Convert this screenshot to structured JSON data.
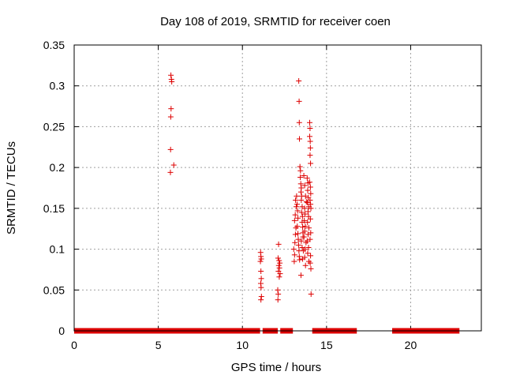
{
  "chart_data": {
    "type": "scatter",
    "title": "Day 108 of 2019, SRMTID for receiver coen",
    "xlabel": "GPS time / hours",
    "ylabel": "SRMTID / TECUs",
    "xlim": [
      0,
      24.2
    ],
    "ylim": [
      0,
      0.35
    ],
    "xticks": [
      0,
      5,
      10,
      15,
      20
    ],
    "xtick_labels": [
      "0",
      "5",
      "10",
      "15",
      "20"
    ],
    "yticks": [
      0,
      0.05,
      0.1,
      0.15,
      0.2,
      0.25,
      0.3,
      0.35
    ],
    "ytick_labels": [
      "0",
      "0.05",
      "0.1",
      "0.15",
      "0.2",
      "0.25",
      "0.3",
      "0.35"
    ],
    "grid": true,
    "series_color": "#dd0000",
    "marker": "plus",
    "zero_ranges": [
      [
        0,
        11.05
      ],
      [
        11.2,
        12.1
      ],
      [
        12.25,
        13.0
      ],
      [
        14.15,
        16.8
      ],
      [
        18.9,
        22.9
      ]
    ],
    "points": [
      [
        5.75,
        0.313
      ],
      [
        5.78,
        0.308
      ],
      [
        5.8,
        0.305
      ],
      [
        5.76,
        0.272
      ],
      [
        5.74,
        0.262
      ],
      [
        5.73,
        0.222
      ],
      [
        5.92,
        0.203
      ],
      [
        5.72,
        0.194
      ],
      [
        11.08,
        0.096
      ],
      [
        11.1,
        0.091
      ],
      [
        11.12,
        0.088
      ],
      [
        11.07,
        0.085
      ],
      [
        11.1,
        0.073
      ],
      [
        11.12,
        0.064
      ],
      [
        11.09,
        0.058
      ],
      [
        11.11,
        0.053
      ],
      [
        11.13,
        0.042
      ],
      [
        11.1,
        0.038
      ],
      [
        12.15,
        0.106
      ],
      [
        12.12,
        0.089
      ],
      [
        12.18,
        0.086
      ],
      [
        12.22,
        0.083
      ],
      [
        12.16,
        0.08
      ],
      [
        12.2,
        0.077
      ],
      [
        12.14,
        0.073
      ],
      [
        12.24,
        0.07
      ],
      [
        12.19,
        0.066
      ],
      [
        12.1,
        0.05
      ],
      [
        12.13,
        0.045
      ],
      [
        12.11,
        0.038
      ],
      [
        13.05,
        0.1
      ],
      [
        13.1,
        0.093
      ],
      [
        13.08,
        0.085
      ],
      [
        13.12,
        0.108
      ],
      [
        13.15,
        0.118
      ],
      [
        13.18,
        0.126
      ],
      [
        13.1,
        0.135
      ],
      [
        13.14,
        0.142
      ],
      [
        13.2,
        0.152
      ],
      [
        13.16,
        0.16
      ],
      [
        13.22,
        0.165
      ],
      [
        13.25,
        0.155
      ],
      [
        13.28,
        0.147
      ],
      [
        13.3,
        0.138
      ],
      [
        13.26,
        0.128
      ],
      [
        13.3,
        0.119
      ],
      [
        13.32,
        0.112
      ],
      [
        13.34,
        0.105
      ],
      [
        13.36,
        0.098
      ],
      [
        13.38,
        0.091
      ],
      [
        13.4,
        0.087
      ],
      [
        13.35,
        0.306
      ],
      [
        13.37,
        0.281
      ],
      [
        13.38,
        0.255
      ],
      [
        13.39,
        0.235
      ],
      [
        13.42,
        0.201
      ],
      [
        13.45,
        0.196
      ],
      [
        13.44,
        0.188
      ],
      [
        13.47,
        0.18
      ],
      [
        13.5,
        0.175
      ],
      [
        13.48,
        0.17
      ],
      [
        13.52,
        0.165
      ],
      [
        13.5,
        0.16
      ],
      [
        13.55,
        0.152
      ],
      [
        13.52,
        0.145
      ],
      [
        13.57,
        0.14
      ],
      [
        13.55,
        0.133
      ],
      [
        13.58,
        0.127
      ],
      [
        13.6,
        0.12
      ],
      [
        13.6,
        0.115
      ],
      [
        13.5,
        0.11
      ],
      [
        13.55,
        0.102
      ],
      [
        13.62,
        0.098
      ],
      [
        13.58,
        0.088
      ],
      [
        13.48,
        0.068
      ],
      [
        13.65,
        0.19
      ],
      [
        13.7,
        0.178
      ],
      [
        13.75,
        0.165
      ],
      [
        13.8,
        0.158
      ],
      [
        13.7,
        0.15
      ],
      [
        13.72,
        0.143
      ],
      [
        13.68,
        0.135
      ],
      [
        13.74,
        0.128
      ],
      [
        13.7,
        0.122
      ],
      [
        13.66,
        0.115
      ],
      [
        13.78,
        0.108
      ],
      [
        13.72,
        0.1
      ],
      [
        13.7,
        0.09
      ],
      [
        13.75,
        0.08
      ],
      [
        13.85,
        0.187
      ],
      [
        13.9,
        0.181
      ],
      [
        13.88,
        0.172
      ],
      [
        13.92,
        0.163
      ],
      [
        13.86,
        0.157
      ],
      [
        13.95,
        0.152
      ],
      [
        13.9,
        0.146
      ],
      [
        13.93,
        0.14
      ],
      [
        13.87,
        0.133
      ],
      [
        13.95,
        0.126
      ],
      [
        13.9,
        0.118
      ],
      [
        13.85,
        0.11
      ],
      [
        13.93,
        0.102
      ],
      [
        13.88,
        0.095
      ],
      [
        13.95,
        0.085
      ],
      [
        14.0,
        0.255
      ],
      [
        14.02,
        0.248
      ],
      [
        14.0,
        0.238
      ],
      [
        14.03,
        0.232
      ],
      [
        14.04,
        0.224
      ],
      [
        14.02,
        0.215
      ],
      [
        14.05,
        0.205
      ],
      [
        14.0,
        0.182
      ],
      [
        14.04,
        0.176
      ],
      [
        14.06,
        0.168
      ],
      [
        14.02,
        0.16
      ],
      [
        14.05,
        0.155
      ],
      [
        14.07,
        0.15
      ],
      [
        14.04,
        0.137
      ],
      [
        14.06,
        0.12
      ],
      [
        14.02,
        0.112
      ],
      [
        14.05,
        0.092
      ],
      [
        14.03,
        0.083
      ],
      [
        14.07,
        0.076
      ],
      [
        14.08,
        0.045
      ]
    ]
  }
}
